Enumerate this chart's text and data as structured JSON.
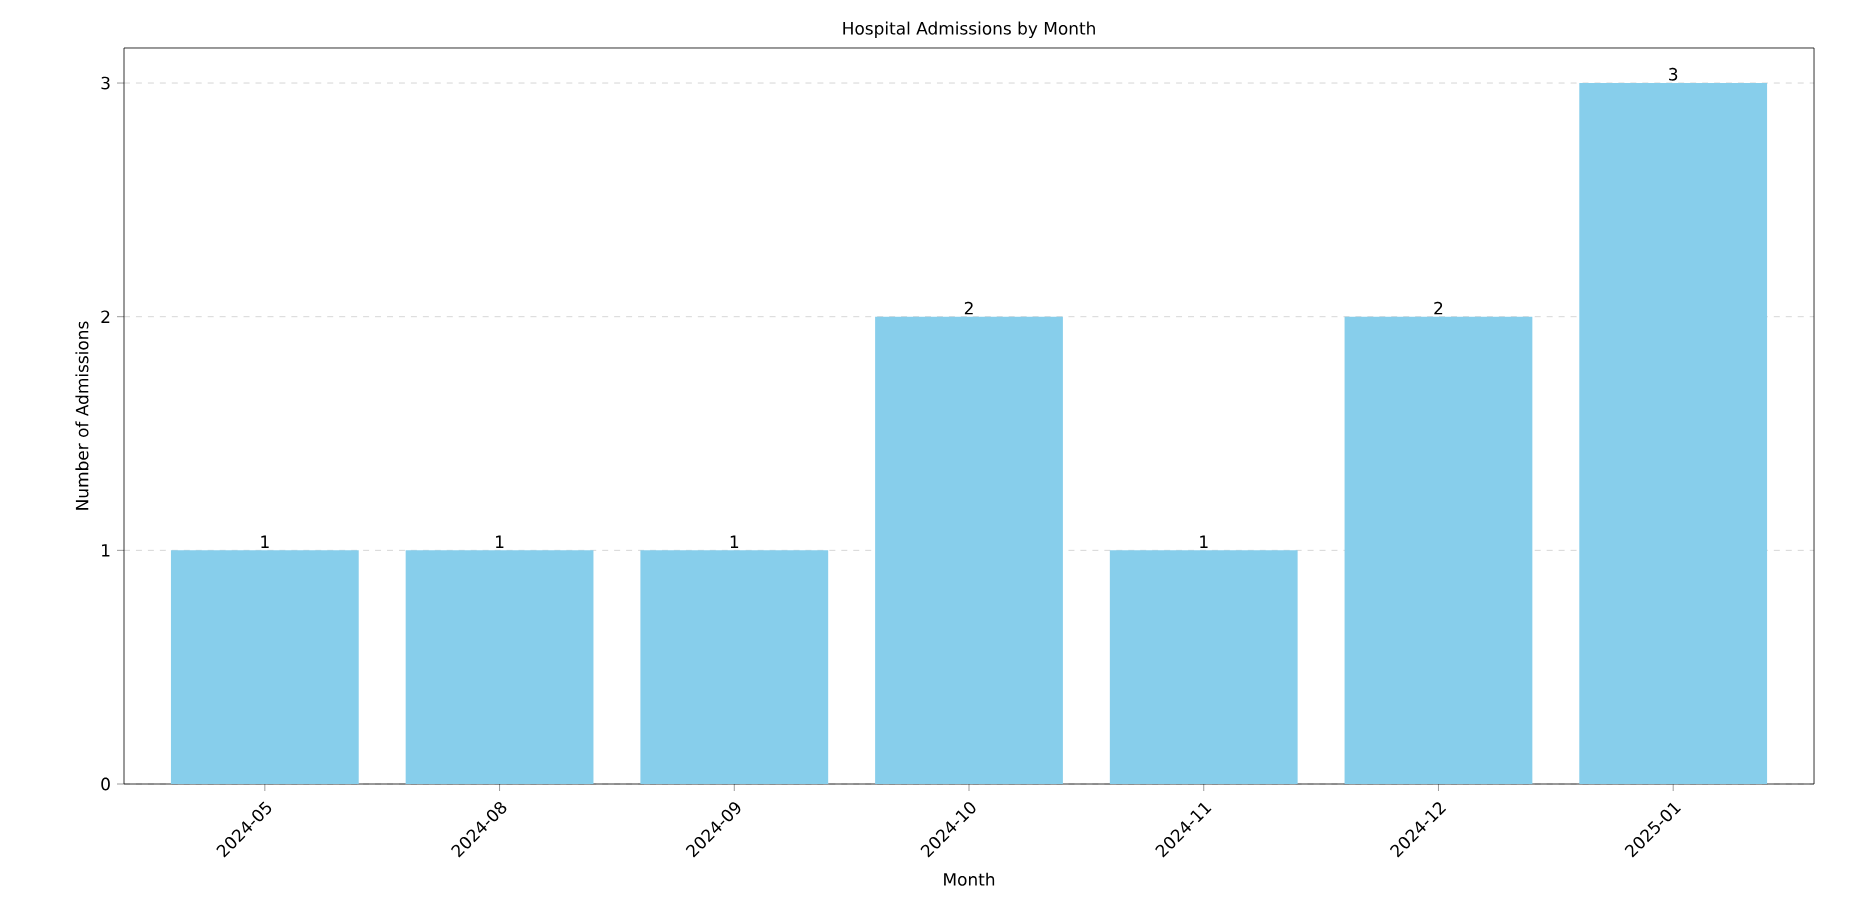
{
  "chart_data": {
    "type": "bar",
    "title": "Hospital Admissions by Month",
    "xlabel": "Month",
    "ylabel": "Number of Admissions",
    "categories": [
      "2024-05",
      "2024-08",
      "2024-09",
      "2024-10",
      "2024-11",
      "2024-12",
      "2025-01"
    ],
    "values": [
      1,
      1,
      1,
      2,
      1,
      2,
      3
    ],
    "color": "#87ceeb",
    "ylim": [
      0,
      3.15
    ],
    "yticks": [
      0,
      1,
      2,
      3
    ],
    "grid": "y",
    "data_labels": true
  }
}
